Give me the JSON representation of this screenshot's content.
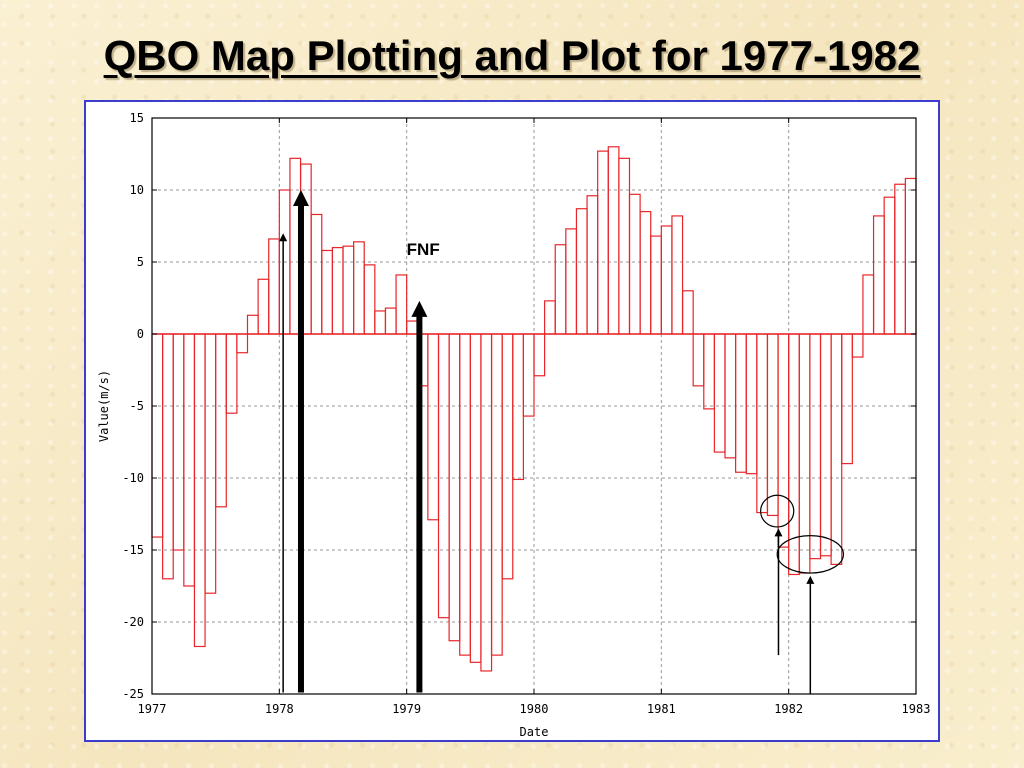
{
  "slide": {
    "title": "QBO Map Plotting and Plot for 1977-1982"
  },
  "chart_data": {
    "type": "bar",
    "xlabel": "Date",
    "ylabel": "Value(m/s)",
    "xlim": [
      1977,
      1983
    ],
    "ylim": [
      -25,
      15
    ],
    "x_ticks": [
      1977,
      1978,
      1979,
      1980,
      1981,
      1982,
      1983
    ],
    "y_ticks": [
      -25,
      -20,
      -15,
      -10,
      -5,
      0,
      5,
      10,
      15
    ],
    "grid": true,
    "bar_color": "#e8262a",
    "series": [
      {
        "values": [
          -14.1,
          -17.0,
          -15.0,
          -17.5,
          -21.7,
          -18.0,
          -12.0,
          -5.5,
          -1.3,
          1.3,
          3.8,
          6.6,
          10.0,
          12.2,
          11.8,
          8.3,
          5.8,
          6.0,
          6.1,
          6.4,
          4.8,
          1.6,
          1.8,
          4.1,
          0.9,
          -3.6,
          -12.9,
          -19.7,
          -21.3,
          -22.3,
          -22.8,
          -23.4,
          -22.3,
          -17.0,
          -10.1,
          -5.7,
          -2.9,
          2.3,
          6.2,
          7.3,
          8.7,
          9.6,
          12.7,
          13.0,
          12.2,
          9.7,
          8.5,
          6.8,
          7.5,
          8.2,
          3.0,
          -3.6,
          -5.2,
          -8.2,
          -8.6,
          -9.6,
          -9.7,
          -12.4,
          -12.6,
          -14.8,
          -16.7,
          -16.6,
          -15.6,
          -15.4,
          -16.0,
          -9.0,
          -1.6,
          4.1,
          8.2,
          9.5,
          10.4,
          10.8
        ]
      }
    ],
    "annotations": [
      {
        "type": "text",
        "text": "FNF",
        "x": 1979.0,
        "y": 5.5
      },
      {
        "type": "arrow",
        "style": "thick",
        "x": 1978.17,
        "y_from": -24.9,
        "y_to": 10.0
      },
      {
        "type": "arrow",
        "style": "thin",
        "x": 1978.03,
        "y_from": -24.9,
        "y_to": 7.0
      },
      {
        "type": "arrow",
        "style": "thick",
        "x": 1979.1,
        "y_from": -24.9,
        "y_to": 2.3
      },
      {
        "type": "arrow",
        "style": "thin",
        "x": 1981.92,
        "y_from": -22.3,
        "y_to": -13.5
      },
      {
        "type": "arrow",
        "style": "thin",
        "x": 1982.17,
        "y_from": -25.0,
        "y_to": -16.8
      },
      {
        "type": "ellipse",
        "cx": 1981.91,
        "cy": -12.3,
        "rx": 0.13,
        "ry": 1.1
      },
      {
        "type": "ellipse",
        "cx": 1982.17,
        "cy": -15.3,
        "rx": 0.26,
        "ry": 1.3
      }
    ]
  }
}
